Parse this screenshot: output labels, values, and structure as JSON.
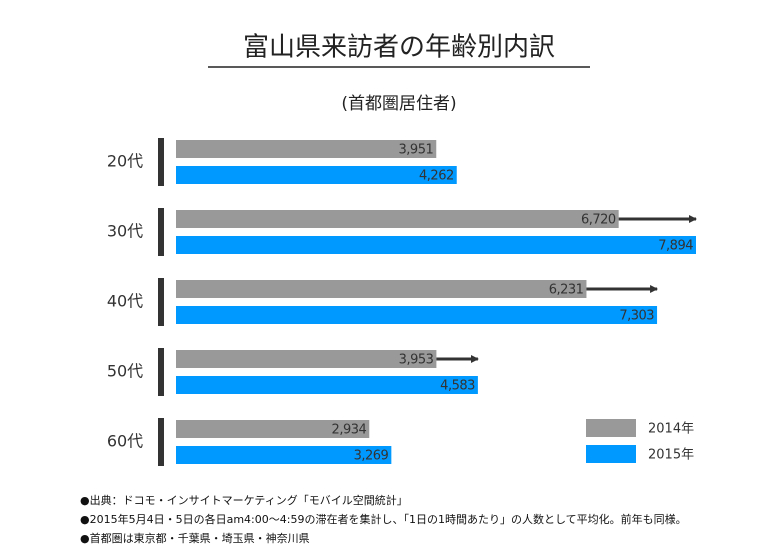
{
  "chart_data": {
    "type": "bar",
    "orientation": "horizontal",
    "title": "富山県来訪者の年齢別内訳",
    "subtitle": "(首都圏居住者)",
    "categories": [
      "20代",
      "30代",
      "40代",
      "50代",
      "60代"
    ],
    "series": [
      {
        "name": "2014年",
        "color": "#999999",
        "values": [
          3951,
          6720,
          6231,
          3953,
          2934
        ],
        "value_labels": [
          "3,951",
          "6,720",
          "6,231",
          "3,953",
          "2,934"
        ]
      },
      {
        "name": "2015年",
        "color": "#0099ff",
        "values": [
          4262,
          7894,
          7303,
          4583,
          3269
        ],
        "value_labels": [
          "4,262",
          "7,894",
          "7,303",
          "4,583",
          "3,269"
        ]
      }
    ],
    "arrows": [
      false,
      true,
      true,
      true,
      false
    ],
    "arrow_color": "#333333",
    "legend": "bottom-right",
    "notes": [
      "●出典：ドコモ・インサイトマーケティング「モバイル空間統計」",
      "●2015年5月4日・5日の各日am4:00～4:59の滞在者を集計し、「1日の1時間あたり」の人数として平均化。前年も同様。",
      "●首都圏は東京都・千葉県・埼玉県・神奈川県"
    ]
  }
}
